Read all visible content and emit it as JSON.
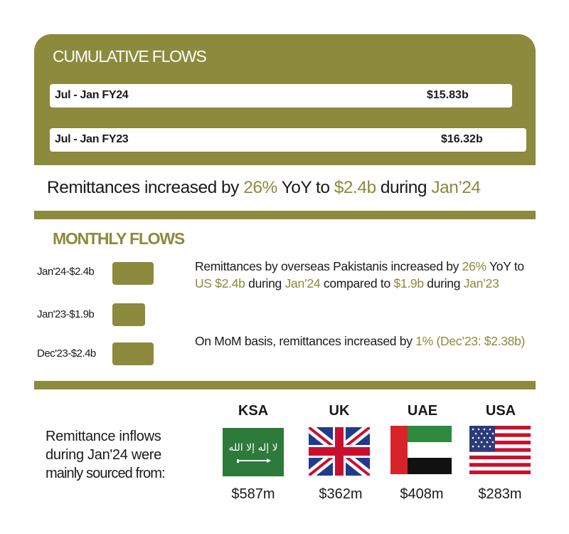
{
  "cumulative": {
    "title": "CUMULATIVE FLOWS",
    "bars": [
      {
        "label": "Jul - Jan FY24",
        "value": "$15.83b",
        "amount": 15.83
      },
      {
        "label": "Jul - Jan FY23",
        "value": "$16.32b",
        "amount": 16.32
      }
    ]
  },
  "headline": {
    "pre": "Remittances increased by ",
    "pct": "26%",
    "mid": " YoY to ",
    "amt": "$2.4b",
    "post": " during ",
    "month": "Jan’24"
  },
  "monthly": {
    "title": "MONTHLY FLOWS",
    "bars": [
      {
        "label": "Jan'24-$2.4b",
        "amount": 2.4
      },
      {
        "label": "Jan'23-$1.9b",
        "amount": 1.9
      },
      {
        "label": "Dec'23-$2.4b",
        "amount": 2.38
      }
    ],
    "para1": {
      "t1": "Remittances by overseas Pakistanis increased by ",
      "h1": "26%",
      "t2": " YoY to ",
      "h2": "US $2.4b",
      "t3": " during ",
      "h3": "Jan’24",
      "t4": " compared to ",
      "h4": "$1.9b",
      "t5": " during ",
      "h5": "Jan’23"
    },
    "para2": {
      "t1": "On MoM basis, remittances increased by ",
      "h1": "1% (Dec’23: $2.38b)"
    }
  },
  "sources": {
    "text_line1": "Remittance inflows",
    "text_line2": "during Jan'24 were",
    "text_line3": "mainly sourced from:",
    "countries": [
      {
        "name": "KSA",
        "amount": "$587m",
        "flag": "saudi-flag-icon"
      },
      {
        "name": "UK",
        "amount": "$362m",
        "flag": "uk-flag-icon"
      },
      {
        "name": "UAE",
        "amount": "$408m",
        "flag": "uae-flag-icon"
      },
      {
        "name": "USA",
        "amount": "$283m",
        "flag": "usa-flag-icon"
      }
    ]
  },
  "colors": {
    "accent": "#8c8a3c",
    "text": "#1a1a1a"
  }
}
